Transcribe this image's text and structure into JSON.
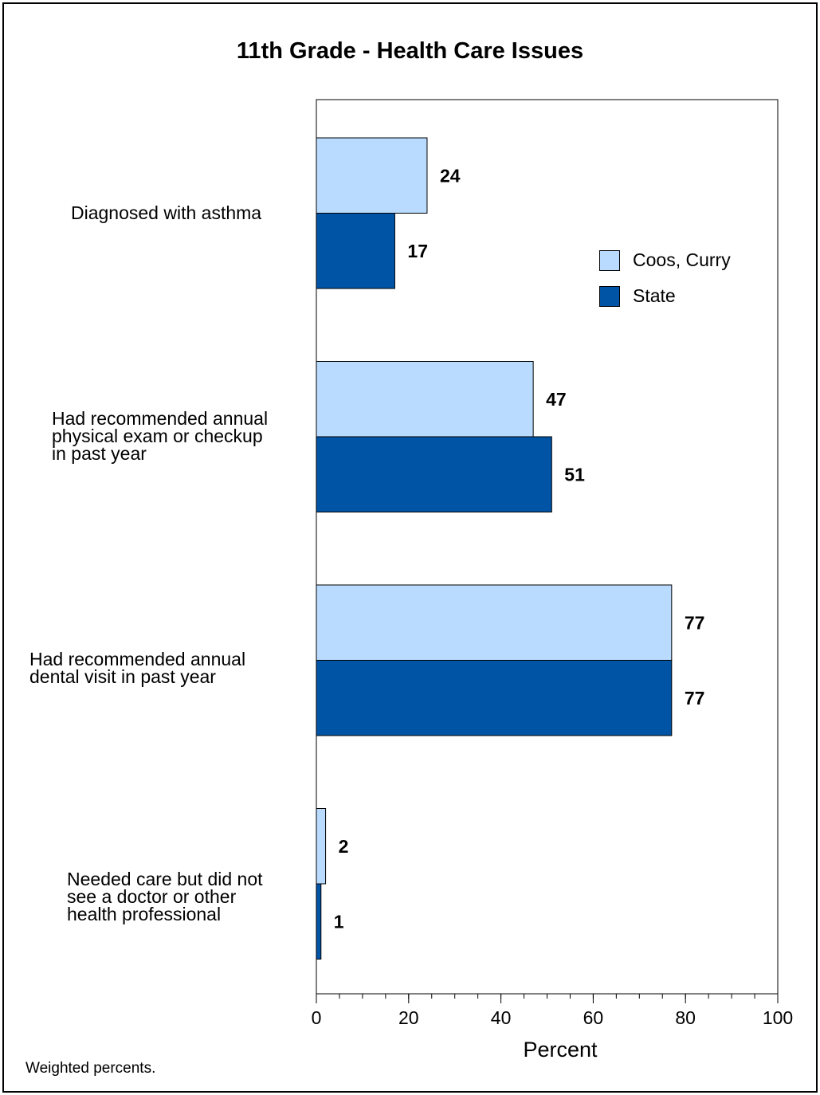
{
  "chart_data": {
    "type": "bar",
    "orientation": "horizontal",
    "title": "11th Grade - Health Care Issues",
    "xlabel": "Percent",
    "xlim": [
      0,
      100
    ],
    "x_ticks": [
      "0",
      "20",
      "40",
      "60",
      "80",
      "100"
    ],
    "categories": [
      [
        "Diagnosed with asthma"
      ],
      [
        "Had recommended annual",
        "physical exam or checkup",
        "in past year"
      ],
      [
        "Had recommended annual",
        "dental visit in past year"
      ],
      [
        "Needed care but did not",
        "see a doctor or other",
        "health professional"
      ]
    ],
    "series": [
      {
        "name": "Coos, Curry",
        "color": "#b9dbff",
        "values": [
          24,
          47,
          77,
          2
        ]
      },
      {
        "name": "State",
        "color": "#0054a6",
        "values": [
          17,
          51,
          77,
          1
        ]
      }
    ],
    "legend_placement": "right",
    "grid": false,
    "footnote": "Weighted percents."
  }
}
